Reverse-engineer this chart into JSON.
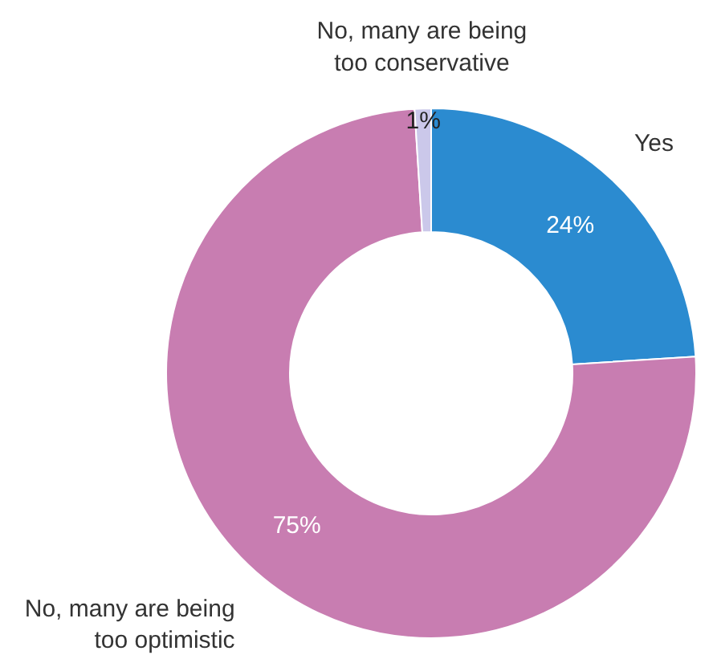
{
  "chart_data": {
    "type": "donut",
    "categories": [
      "Yes",
      "No, many are being too optimistic",
      "No, many are being too conservative"
    ],
    "values": [
      24,
      75,
      1
    ],
    "colors": [
      "#2b8bd0",
      "#c87db1",
      "#cbc8ea"
    ],
    "value_labels": [
      "24%",
      "75%",
      "1%"
    ]
  }
}
